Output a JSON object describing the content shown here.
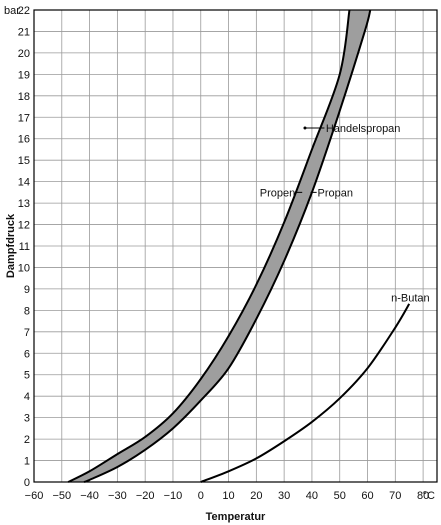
{
  "chart_data": {
    "type": "line",
    "xlabel": "Temperatur",
    "ylabel": "Dampfdruck",
    "x_unit": "°C",
    "y_unit": "bar",
    "xlim": [
      -60,
      85
    ],
    "ylim": [
      0,
      22
    ],
    "xticks": [
      -60,
      -50,
      -40,
      -30,
      -20,
      -10,
      0,
      10,
      20,
      30,
      40,
      50,
      60,
      70,
      80
    ],
    "yticks": [
      0,
      1,
      2,
      3,
      4,
      5,
      6,
      7,
      8,
      9,
      10,
      11,
      12,
      13,
      14,
      15,
      16,
      17,
      18,
      19,
      20,
      21,
      22
    ],
    "grid": true,
    "band": {
      "name": "Handelspropan",
      "fill": "#9e9e9e"
    },
    "series": [
      {
        "name": "Propen",
        "color": "#000000",
        "points": [
          [
            -47.7,
            0
          ],
          [
            -40,
            0.5
          ],
          [
            -30,
            1.3
          ],
          [
            -20,
            2.1
          ],
          [
            -10,
            3.2
          ],
          [
            0,
            4.8
          ],
          [
            10,
            6.8
          ],
          [
            20,
            9.2
          ],
          [
            30,
            12.1
          ],
          [
            40,
            15.5
          ],
          [
            50,
            19.0
          ],
          [
            53.5,
            22
          ]
        ]
      },
      {
        "name": "Propan",
        "color": "#000000",
        "points": [
          [
            -42,
            0
          ],
          [
            -40,
            0.1
          ],
          [
            -30,
            0.7
          ],
          [
            -20,
            1.5
          ],
          [
            -10,
            2.5
          ],
          [
            0,
            3.8
          ],
          [
            10,
            5.3
          ],
          [
            20,
            7.6
          ],
          [
            30,
            10.3
          ],
          [
            40,
            13.5
          ],
          [
            50,
            17.3
          ],
          [
            59,
            21
          ],
          [
            61,
            22
          ]
        ]
      },
      {
        "name": "n-Butan",
        "color": "#000000",
        "points": [
          [
            0,
            0
          ],
          [
            10,
            0.5
          ],
          [
            20,
            1.1
          ],
          [
            30,
            1.9
          ],
          [
            40,
            2.8
          ],
          [
            50,
            3.9
          ],
          [
            60,
            5.3
          ],
          [
            70,
            7.2
          ],
          [
            75,
            8.3
          ]
        ]
      }
    ],
    "annotations": [
      {
        "text": "Handelspropan",
        "x": 45,
        "y": 16.5,
        "align": "left"
      },
      {
        "text": "Propen",
        "x": 34,
        "y": 13.5,
        "align": "right"
      },
      {
        "text": "Propan",
        "x": 42,
        "y": 13.5,
        "align": "left"
      },
      {
        "text": "n-Butan",
        "x": 68.5,
        "y": 8.6,
        "align": "left"
      }
    ]
  }
}
